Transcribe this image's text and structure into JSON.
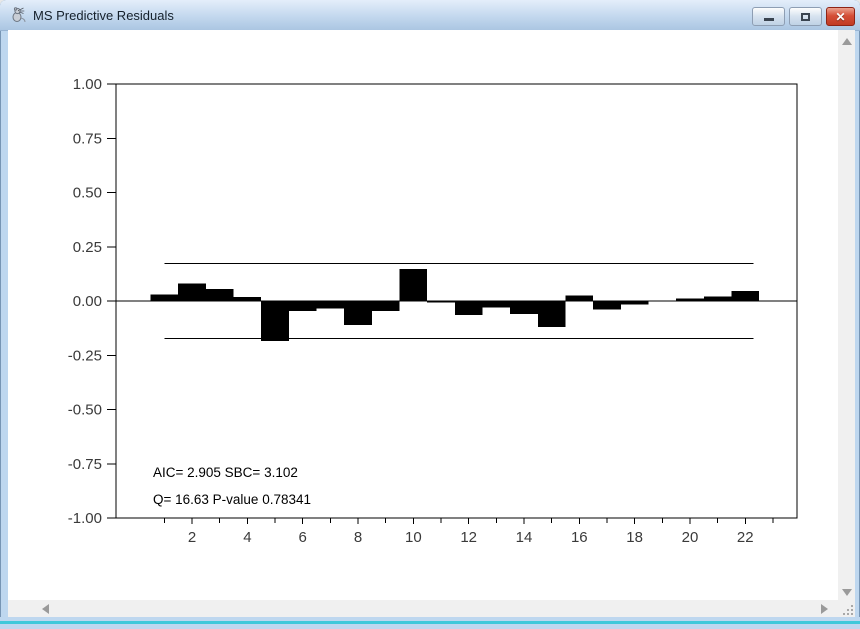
{
  "window": {
    "title": "MS Predictive Residuals",
    "controls": {
      "app_icon": "rat-icon",
      "minimize_icon": "horizontal-bar",
      "restore_icon": "square-outline",
      "close_glyph": "✕"
    }
  },
  "colors": {
    "titlebar_top": "#e4eefa",
    "titlebar_bottom": "#abc6e2",
    "window_border": "#bed7ef",
    "accent_line": "#3fc8da",
    "close_button": "#c13b24",
    "scroll_track": "#f0f0f0",
    "scroll_arrow": "#9a9a9a",
    "chart_foreground": "#000000",
    "axis_label": "#3a3a3a"
  },
  "scrollbars": {
    "vertical": {
      "up_icon": "triangle-up",
      "down_icon": "triangle-down"
    },
    "horizontal": {
      "left_icon": "triangle-left",
      "right_icon": "triangle-right"
    },
    "corner_icon": "resize-grip-dots"
  },
  "chart_data": {
    "type": "bar",
    "title": "MS Predictive Residuals",
    "xlabel": "",
    "ylabel": "",
    "x": [
      1,
      2,
      3,
      4,
      5,
      6,
      7,
      8,
      9,
      10,
      11,
      12,
      13,
      14,
      15,
      16,
      17,
      18,
      19,
      20,
      21,
      22
    ],
    "values": [
      0.03,
      0.08,
      0.055,
      0.018,
      -0.185,
      -0.045,
      -0.035,
      -0.11,
      -0.045,
      0.148,
      -0.008,
      -0.065,
      -0.03,
      -0.06,
      -0.12,
      0.025,
      -0.04,
      -0.015,
      0.002,
      0.012,
      0.02,
      0.045
    ],
    "bar_color": "#000000",
    "xlim": [
      -0.75,
      23.87
    ],
    "ylim": [
      -1,
      1
    ],
    "grid": false,
    "legend": false,
    "yticks": [
      {
        "v": 1.0,
        "label": "1.00"
      },
      {
        "v": 0.75,
        "label": "0.75"
      },
      {
        "v": 0.5,
        "label": "0.50"
      },
      {
        "v": 0.25,
        "label": "0.25"
      },
      {
        "v": 0.0,
        "label": "0.00"
      },
      {
        "v": -0.25,
        "label": "-0.25"
      },
      {
        "v": -0.5,
        "label": "-0.50"
      },
      {
        "v": -0.75,
        "label": "-0.75"
      },
      {
        "v": -1.0,
        "label": "-1.00"
      }
    ],
    "xticks_minor": [
      1,
      3,
      5,
      7,
      9,
      11,
      13,
      15,
      17,
      19,
      21,
      23
    ],
    "xticks_major": [
      {
        "v": 2,
        "label": "2"
      },
      {
        "v": 4,
        "label": "4"
      },
      {
        "v": 6,
        "label": "6"
      },
      {
        "v": 8,
        "label": "8"
      },
      {
        "v": 10,
        "label": "10"
      },
      {
        "v": 12,
        "label": "12"
      },
      {
        "v": 14,
        "label": "14"
      },
      {
        "v": 16,
        "label": "16"
      },
      {
        "v": 18,
        "label": "18"
      },
      {
        "v": 20,
        "label": "20"
      },
      {
        "v": 22,
        "label": "22"
      }
    ],
    "confidence_band": {
      "upper": 0.172,
      "lower": -0.172,
      "x_from": 1.0,
      "x_to": 22.3
    },
    "zero_line": true,
    "annotations": [
      "AIC= 2.905 SBC= 3.102",
      "Q= 16.63 P-value 0.78341"
    ]
  }
}
